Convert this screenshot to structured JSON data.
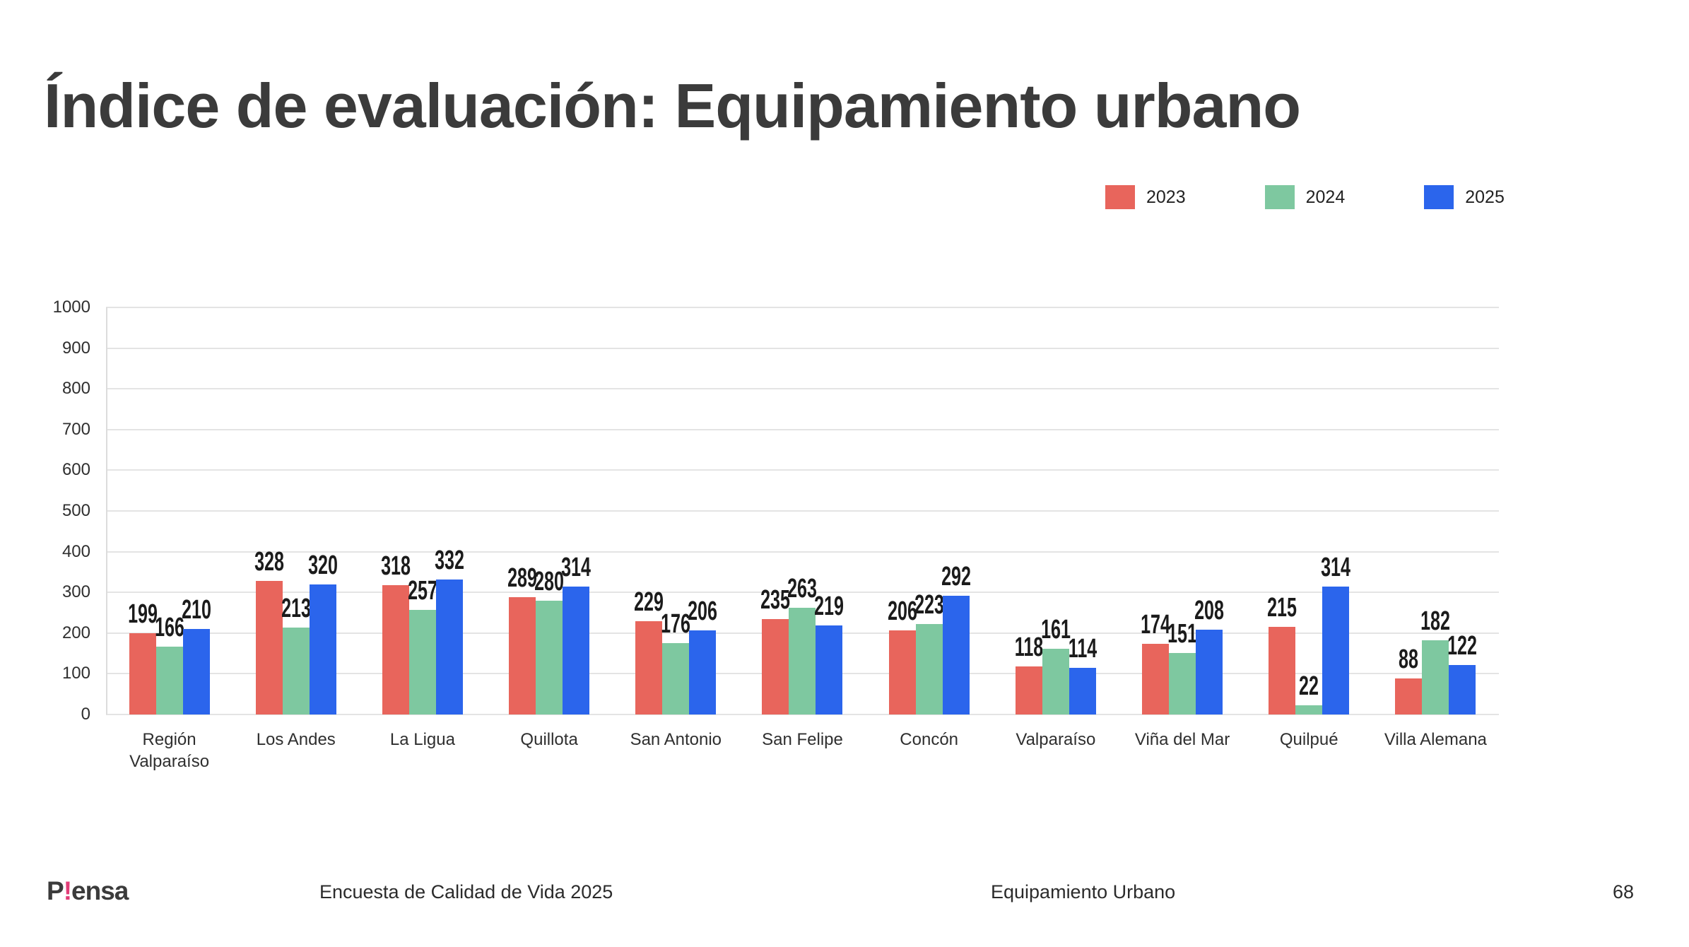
{
  "title": "Índice de evaluación: Equipamiento urbano",
  "colors": {
    "series_2023": "#e8655c",
    "series_2024": "#7ec8a0",
    "series_2025": "#2b65ec",
    "title_text": "#3b3b3b",
    "logo_accent": "#e23d77",
    "gridline": "#e4e4e4"
  },
  "chart_data": {
    "type": "bar",
    "title": "Índice de evaluación: Equipamiento urbano",
    "categories": [
      "Región Valparaíso",
      "Los Andes",
      "La Ligua",
      "Quillota",
      "San Antonio",
      "San Felipe",
      "Concón",
      "Valparaíso",
      "Viña del Mar",
      "Quilpué",
      "Villa Alemana"
    ],
    "series": [
      {
        "name": "2023",
        "color": "#e8655c",
        "values": [
          199,
          328,
          318,
          289,
          229,
          235,
          206,
          118,
          174,
          215,
          88
        ]
      },
      {
        "name": "2024",
        "color": "#7ec8a0",
        "values": [
          166,
          213,
          257,
          280,
          176,
          263,
          223,
          161,
          151,
          22,
          182
        ]
      },
      {
        "name": "2025",
        "color": "#2b65ec",
        "values": [
          210,
          320,
          332,
          314,
          206,
          219,
          292,
          114,
          208,
          314,
          122
        ]
      }
    ],
    "xlabel": "",
    "ylabel": "",
    "ylim": [
      0,
      1000
    ],
    "ytick_step": 100,
    "yticks": [
      "0",
      "100",
      "200",
      "300",
      "400",
      "500",
      "600",
      "700",
      "800",
      "900",
      "1000"
    ],
    "grid": true,
    "legend_position": "top-right",
    "bar_value_labels": true
  },
  "footer": {
    "logo_prefix": "P",
    "logo_bang": "!",
    "logo_suffix": "ensa",
    "left_text": "Encuesta de Calidad de Vida 2025",
    "center_text": "Equipamiento Urbano",
    "page_number": "68"
  }
}
